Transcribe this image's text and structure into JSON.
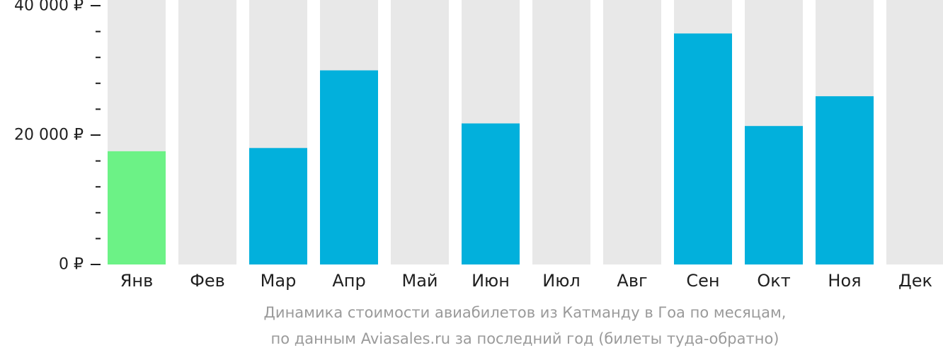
{
  "chart_data": {
    "type": "bar",
    "categories": [
      "Янв",
      "Фев",
      "Мар",
      "Апр",
      "Май",
      "Июн",
      "Июл",
      "Авг",
      "Сен",
      "Окт",
      "Ноя",
      "Дек"
    ],
    "values": [
      17500,
      null,
      18000,
      30000,
      null,
      21800,
      null,
      null,
      35700,
      21400,
      26000,
      null
    ],
    "ylim": [
      0,
      40000
    ],
    "yticks": [
      {
        "value": 0,
        "label": "0 ₽"
      },
      {
        "value": 20000,
        "label": "20 000 ₽"
      },
      {
        "value": 40000,
        "label": "40 000 ₽"
      }
    ],
    "minor_tick_step": 4000,
    "grid": false,
    "legend": "none",
    "colors": {
      "bar": "#02b0dc",
      "lowest_bar": "#6cf286",
      "background_column": "#e8e8e8",
      "axis_text": "#1f1f1f",
      "caption": "#9a9a9a"
    },
    "lowest_index": 0
  },
  "caption": {
    "line1": "Динамика стоимости авиабилетов из Катманду в Гоа по месяцам,",
    "line2": "по данным Aviasales.ru за последний год (билеты туда-обратно)"
  }
}
